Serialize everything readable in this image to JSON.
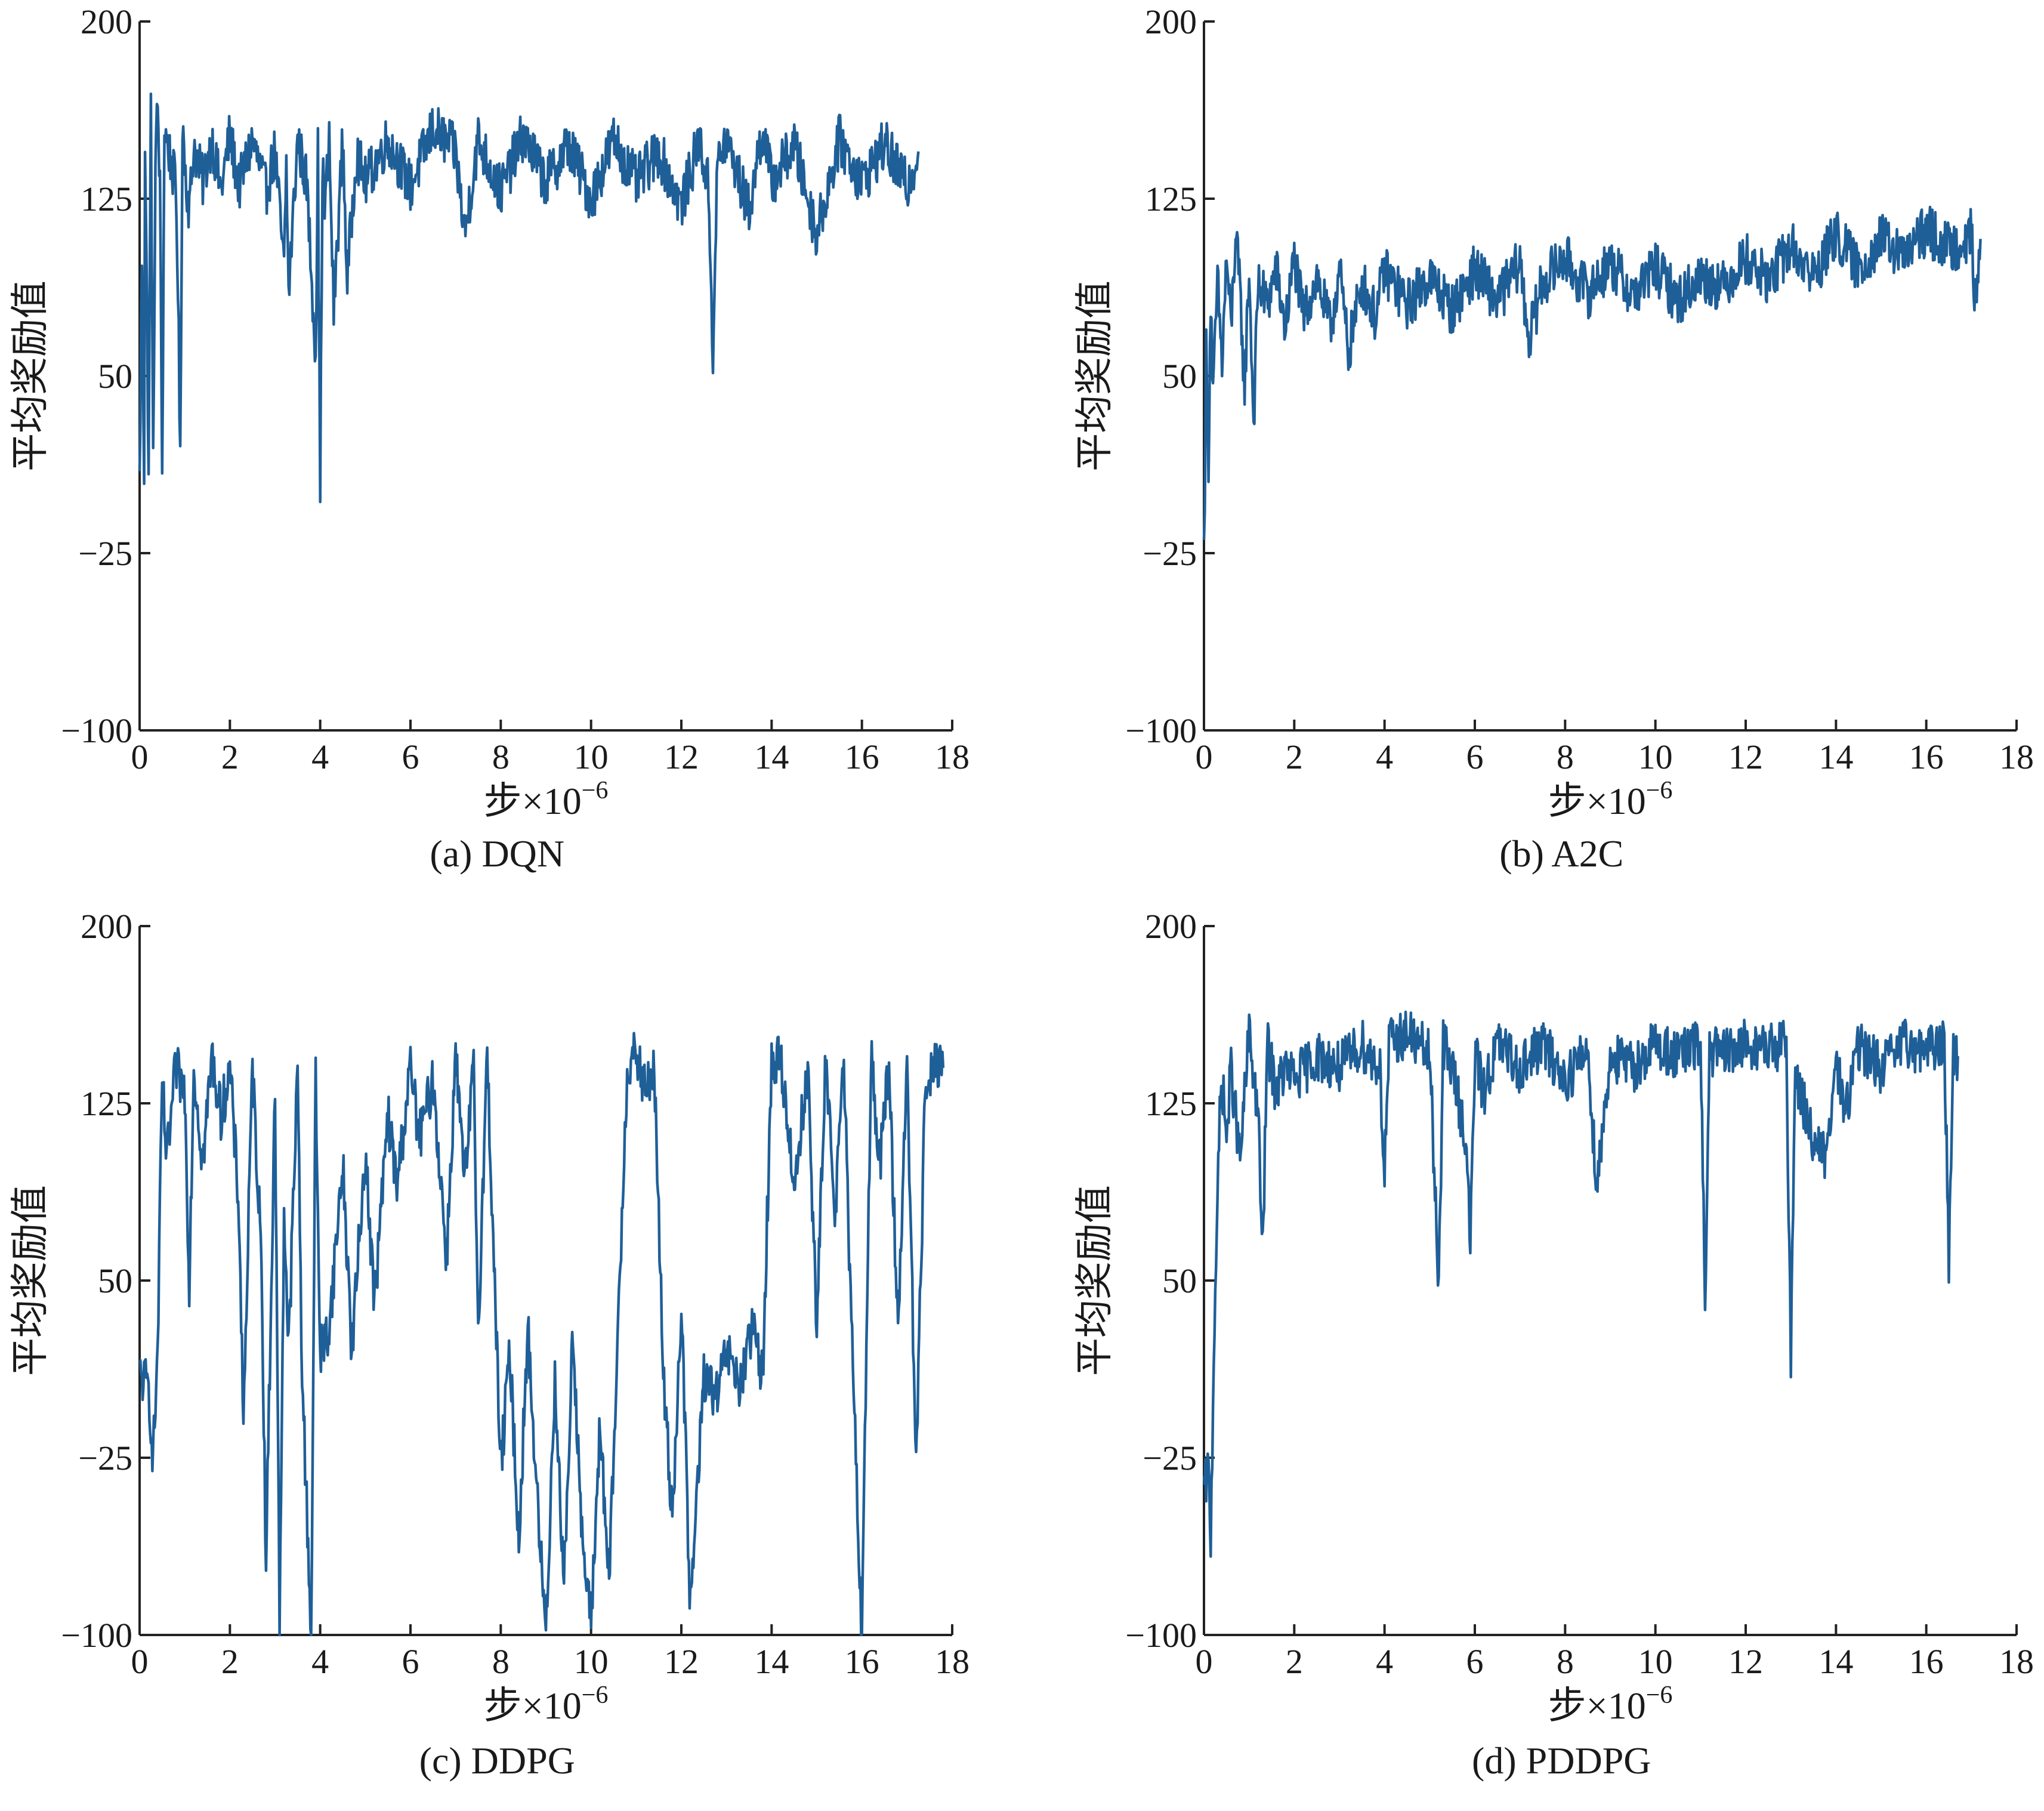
{
  "colors": {
    "series": "#1f5f98",
    "axis": "#222222",
    "text": "#1a1a1a"
  },
  "chart_data": [
    {
      "type": "line",
      "caption": "(a) DQN",
      "xlabel_main": "步×10",
      "xlabel_sup": "−6",
      "ylabel": "平均奖励值",
      "xlim": [
        0,
        18
      ],
      "ylim": [
        -100,
        200
      ],
      "xticks": [
        0,
        2,
        4,
        6,
        8,
        10,
        12,
        14,
        16,
        18
      ],
      "yticks": [
        -100,
        -25,
        50,
        125,
        200
      ],
      "ytick_labels": [
        "−100",
        "−25",
        "50",
        "125",
        "200"
      ],
      "grid": false,
      "series": [
        {
          "x": [
            0,
            0.05,
            0.1,
            0.12,
            0.15,
            0.2,
            0.25,
            0.3,
            0.35,
            0.4,
            0.45,
            0.5,
            0.55,
            0.6,
            0.7,
            0.8,
            0.85,
            0.9,
            0.95,
            1.0,
            1.1,
            1.2,
            1.4,
            1.6,
            1.8,
            2.0,
            2.2,
            2.5,
            2.8,
            3.0,
            3.2,
            3.25,
            3.3,
            3.5,
            3.7,
            3.9,
            3.95,
            4.0,
            4.05,
            4.1,
            4.2,
            4.3,
            4.5,
            4.6,
            4.8,
            5.0,
            5.5,
            6.0,
            6.5,
            7.0,
            7.2,
            7.5,
            8.0,
            8.5,
            9.0,
            9.5,
            10.0,
            10.5,
            11.0,
            11.5,
            12.0,
            12.4,
            12.6,
            12.7,
            12.8,
            13.0,
            13.5,
            13.8,
            14.0,
            14.5,
            15.0,
            15.5,
            16.0,
            16.5,
            17.0,
            17.25
          ],
          "y": [
            5,
            100,
            10,
            150,
            100,
            10,
            165,
            10,
            140,
            165,
            130,
            10,
            155,
            150,
            140,
            130,
            90,
            10,
            160,
            140,
            120,
            148,
            132,
            150,
            128,
            152,
            130,
            150,
            128,
            145,
            95,
            140,
            85,
            150,
            132,
            60,
            145,
            0,
            140,
            120,
            148,
            78,
            150,
            90,
            145,
            132,
            150,
            130,
            155,
            145,
            110,
            150,
            128,
            152,
            132,
            148,
            125,
            150,
            132,
            145,
            122,
            150,
            130,
            60,
            140,
            150,
            120,
            155,
            132,
            148,
            110,
            150,
            132,
            148,
            130,
            145
          ]
        }
      ]
    },
    {
      "type": "line",
      "caption": "(b) A2C",
      "xlabel_main": "步×10",
      "xlabel_sup": "−6",
      "ylabel": "平均奖励值",
      "xlim": [
        0,
        18
      ],
      "ylim": [
        -100,
        200
      ],
      "xticks": [
        0,
        2,
        4,
        6,
        8,
        10,
        12,
        14,
        16,
        18
      ],
      "yticks": [
        -100,
        -25,
        50,
        125,
        200
      ],
      "ytick_labels": [
        "−100",
        "−25",
        "50",
        "125",
        "200"
      ],
      "grid": false,
      "series": [
        {
          "x": [
            0,
            0.05,
            0.1,
            0.15,
            0.2,
            0.3,
            0.4,
            0.5,
            0.6,
            0.7,
            0.8,
            0.9,
            1.0,
            1.1,
            1.2,
            1.4,
            1.6,
            1.8,
            2.0,
            2.2,
            2.5,
            2.8,
            3.0,
            3.2,
            3.5,
            3.8,
            4.0,
            4.5,
            5.0,
            5.5,
            6.0,
            6.5,
            7.0,
            7.2,
            7.5,
            8.0,
            8.5,
            9.0,
            9.5,
            10.0,
            10.5,
            11.0,
            11.5,
            12.0,
            12.5,
            13.0,
            13.5,
            14.0,
            14.5,
            15.0,
            15.5,
            16.0,
            16.5,
            17.0,
            17.1,
            17.2
          ],
          "y": [
            -25,
            60,
            15,
            85,
            40,
            90,
            55,
            100,
            70,
            110,
            85,
            45,
            95,
            30,
            90,
            80,
            95,
            70,
            100,
            75,
            92,
            70,
            95,
            60,
            90,
            75,
            95,
            80,
            92,
            78,
            95,
            82,
            98,
            65,
            90,
            100,
            85,
            98,
            84,
            96,
            82,
            92,
            88,
            100,
            90,
            105,
            92,
            110,
            95,
            108,
            100,
            112,
            104,
            110,
            75,
            108
          ]
        }
      ]
    },
    {
      "type": "line",
      "caption": "(c) DDPG",
      "xlabel_main": "步×10",
      "xlabel_sup": "−6",
      "ylabel": "平均奖励值",
      "xlim": [
        0,
        18
      ],
      "ylim": [
        -100,
        200
      ],
      "xticks": [
        0,
        2,
        4,
        6,
        8,
        10,
        12,
        14,
        16,
        18
      ],
      "yticks": [
        -100,
        -25,
        50,
        125,
        200
      ],
      "ytick_labels": [
        "−100",
        "−25",
        "50",
        "125",
        "200"
      ],
      "grid": false,
      "series": [
        {
          "x": [
            0,
            0.2,
            0.3,
            0.4,
            0.5,
            0.6,
            0.8,
            1.0,
            1.1,
            1.2,
            1.4,
            1.6,
            1.8,
            2.0,
            2.2,
            2.3,
            2.5,
            2.7,
            2.8,
            3.0,
            3.1,
            3.2,
            3.3,
            3.5,
            3.6,
            3.8,
            3.9,
            4.0,
            4.2,
            4.5,
            4.7,
            5.0,
            5.2,
            5.5,
            5.7,
            6.0,
            6.2,
            6.5,
            6.8,
            7.0,
            7.2,
            7.4,
            7.5,
            7.7,
            8.0,
            8.2,
            8.4,
            8.6,
            8.8,
            9.0,
            9.2,
            9.4,
            9.6,
            9.8,
            10.0,
            10.2,
            10.4,
            10.6,
            10.8,
            11.0,
            11.2,
            11.4,
            11.6,
            11.8,
            12.0,
            12.2,
            12.5,
            12.8,
            13.0,
            13.3,
            13.6,
            13.8,
            14.0,
            14.2,
            14.5,
            14.8,
            15.0,
            15.2,
            15.4,
            15.6,
            15.8,
            16.0,
            16.2,
            16.4,
            16.6,
            16.8,
            17.0,
            17.2,
            17.4,
            17.6,
            17.8
          ],
          "y": [
            10,
            5,
            -25,
            20,
            135,
            100,
            140,
            130,
            50,
            140,
            100,
            145,
            120,
            140,
            80,
            -10,
            140,
            60,
            -70,
            130,
            -95,
            80,
            20,
            140,
            10,
            -100,
            135,
            20,
            30,
            100,
            20,
            105,
            40,
            120,
            90,
            140,
            110,
            135,
            60,
            145,
            90,
            140,
            30,
            145,
            -30,
            20,
            -60,
            30,
            -40,
            -100,
            10,
            -80,
            30,
            -60,
            -95,
            -10,
            -80,
            30,
            140,
            145,
            130,
            140,
            10,
            -50,
            40,
            -90,
            10,
            0,
            20,
            5,
            30,
            10,
            140,
            145,
            90,
            140,
            30,
            145,
            80,
            140,
            10,
            -100,
            145,
            100,
            140,
            30,
            145,
            -30,
            130,
            145,
            140
          ]
        }
      ]
    },
    {
      "type": "line",
      "caption": "(d) PDDPG",
      "xlabel_main": "步×10",
      "xlabel_sup": "−6",
      "ylabel": "平均奖励值",
      "xlim": [
        0,
        18
      ],
      "ylim": [
        -100,
        200
      ],
      "xticks": [
        0,
        2,
        4,
        6,
        8,
        10,
        12,
        14,
        16,
        18
      ],
      "yticks": [
        -100,
        -25,
        50,
        125,
        200
      ],
      "ytick_labels": [
        "−100",
        "−25",
        "50",
        "125",
        "200"
      ],
      "grid": false,
      "series": [
        {
          "x": [
            0,
            0.1,
            0.15,
            0.2,
            0.25,
            0.3,
            0.35,
            0.4,
            0.5,
            0.6,
            0.8,
            1.0,
            1.2,
            1.3,
            1.4,
            1.6,
            1.8,
            2.0,
            2.5,
            3.0,
            3.5,
            3.9,
            4.0,
            4.1,
            4.5,
            5.0,
            5.2,
            5.3,
            5.5,
            5.8,
            5.9,
            6.0,
            6.2,
            6.5,
            7.0,
            7.5,
            8.0,
            8.5,
            8.7,
            9.0,
            9.5,
            10.0,
            10.5,
            11.0,
            11.1,
            11.2,
            11.5,
            12.0,
            12.5,
            12.9,
            13.0,
            13.1,
            13.2,
            13.5,
            13.8,
            14.0,
            14.2,
            14.5,
            15.0,
            15.5,
            16.0,
            16.4,
            16.5,
            16.6,
            16.7
          ],
          "y": [
            -40,
            -30,
            -60,
            0,
            50,
            80,
            120,
            135,
            110,
            140,
            100,
            155,
            120,
            60,
            150,
            130,
            140,
            135,
            145,
            140,
            150,
            140,
            95,
            150,
            155,
            145,
            50,
            150,
            140,
            110,
            65,
            145,
            130,
            150,
            140,
            150,
            135,
            148,
            90,
            145,
            140,
            150,
            145,
            150,
            40,
            148,
            145,
            150,
            148,
            150,
            20,
            140,
            130,
            110,
            100,
            145,
            120,
            150,
            140,
            150,
            148,
            150,
            60,
            148,
            145
          ]
        }
      ]
    }
  ]
}
